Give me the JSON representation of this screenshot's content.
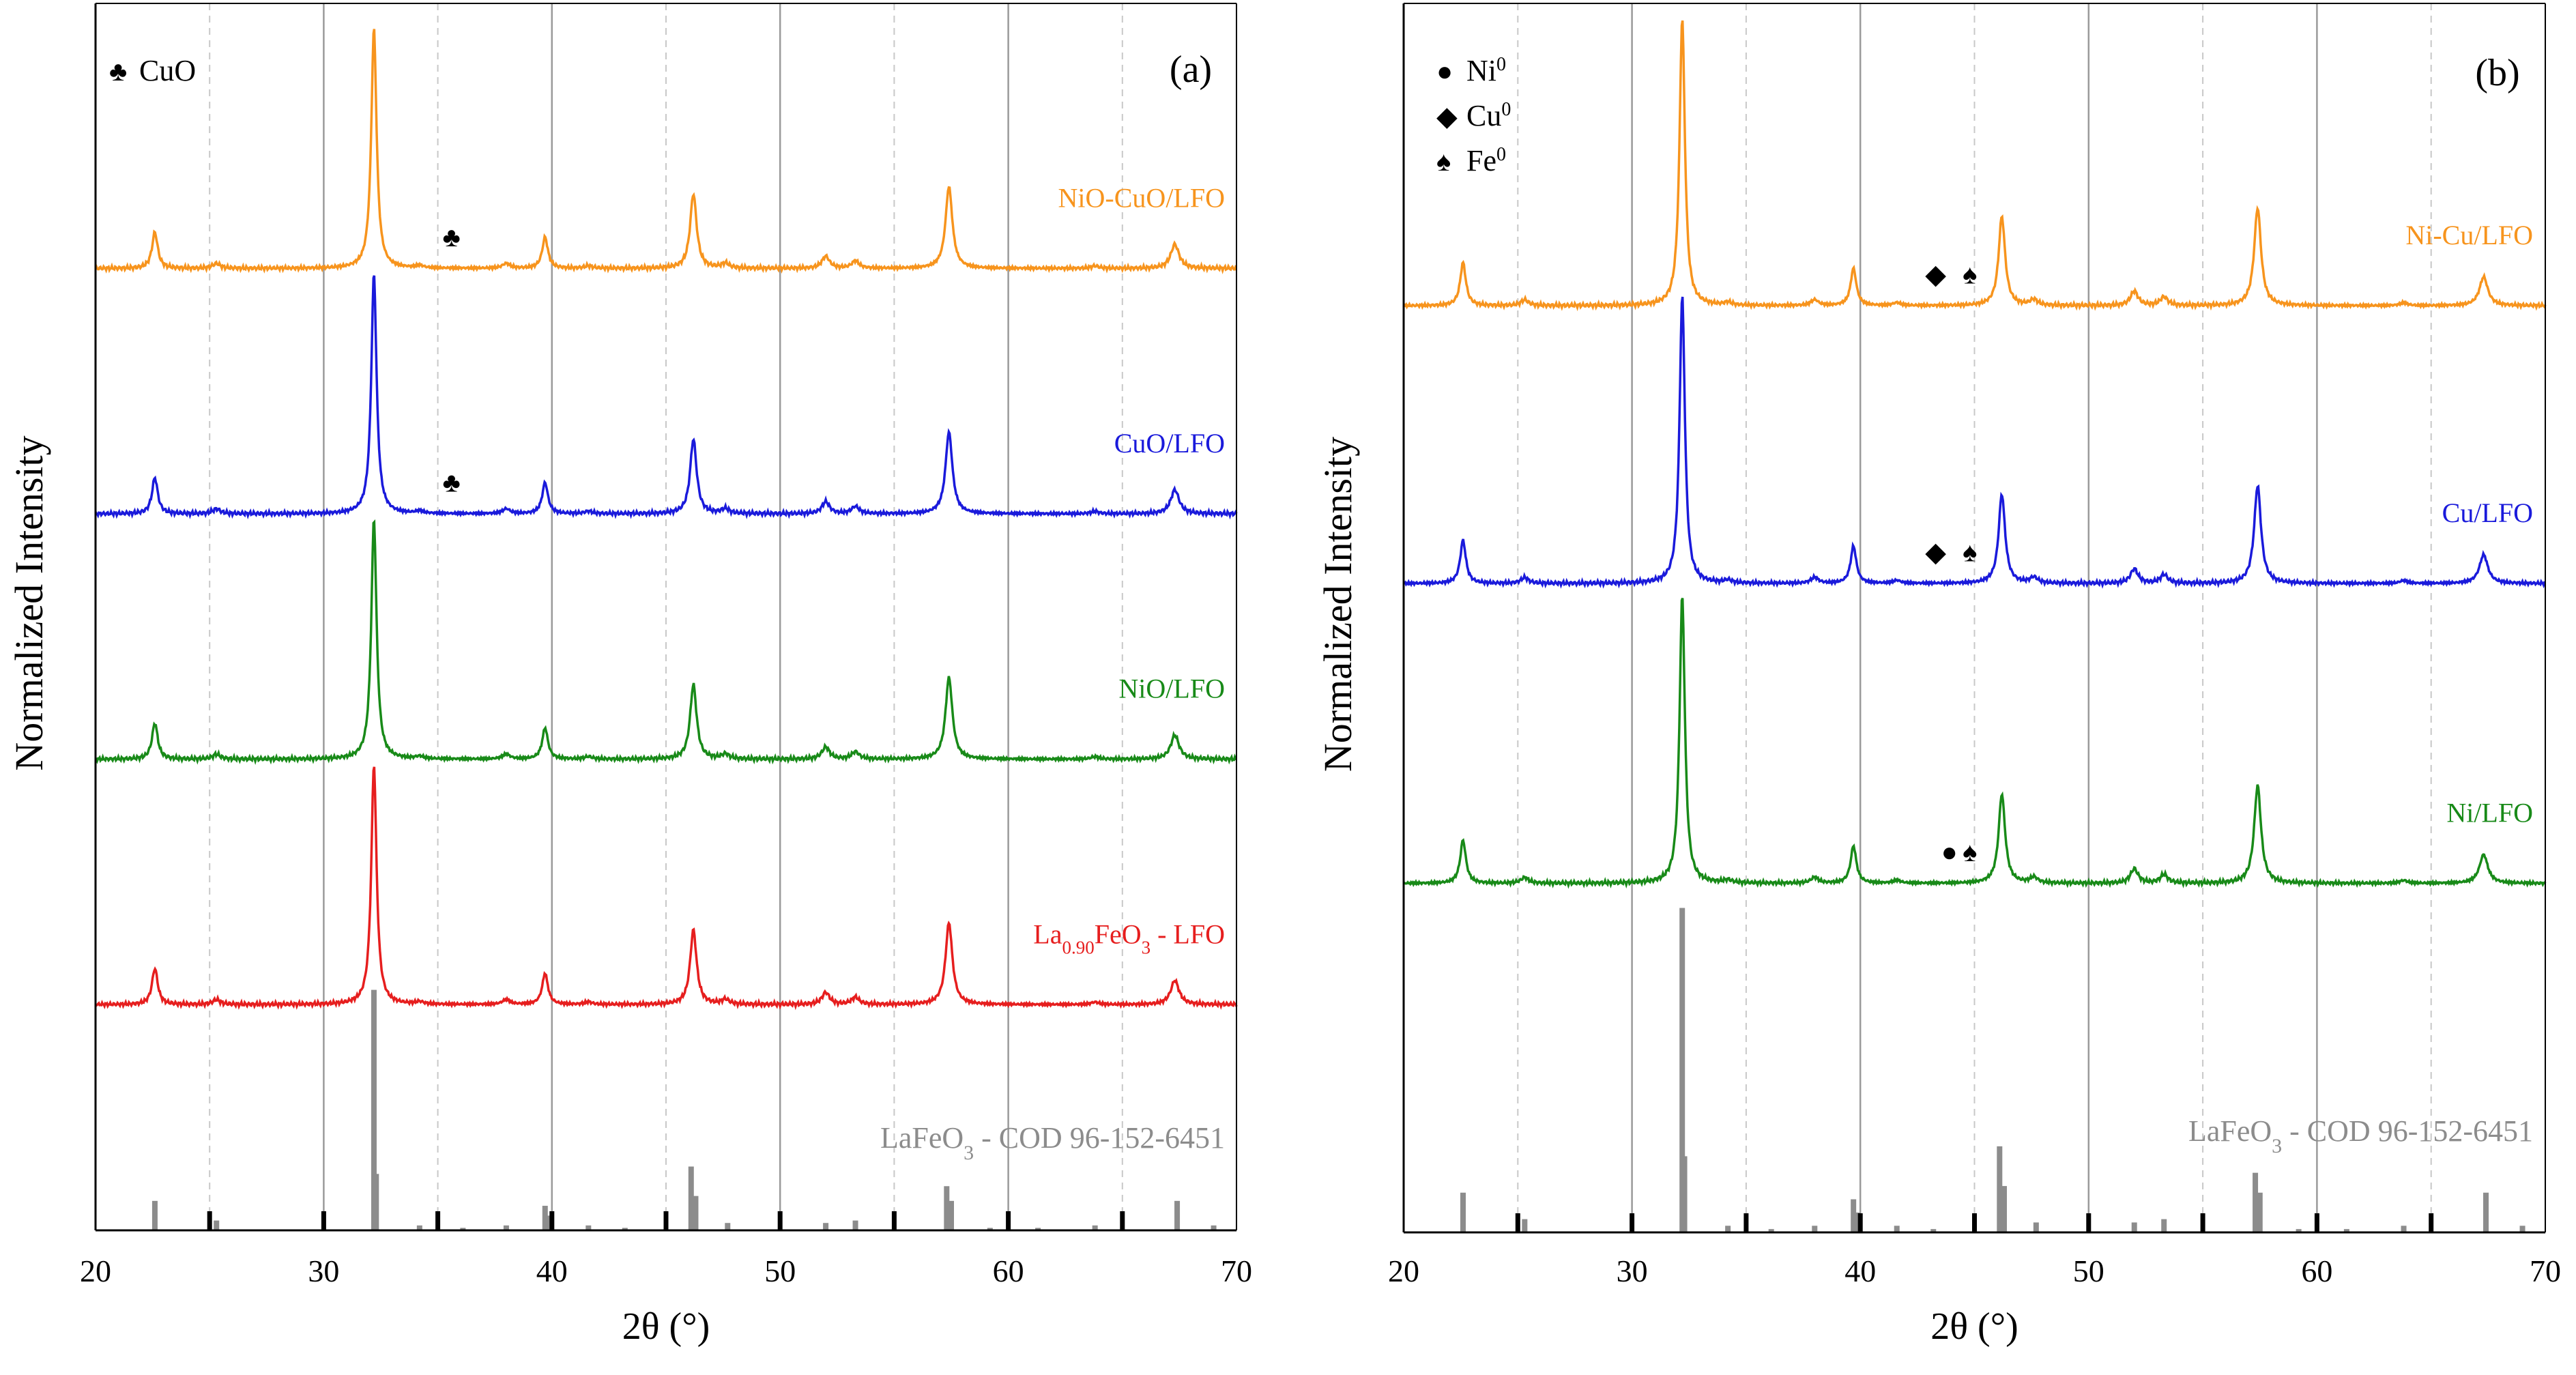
{
  "figure": {
    "panels": [
      {
        "id": "a",
        "label": "(a)"
      },
      {
        "id": "b",
        "label": "(b)"
      }
    ]
  },
  "colors": {
    "orange": "#f7941d",
    "blue": "#1a1adb",
    "green": "#188a18",
    "red": "#e61e1e",
    "reference": "#8c8c8c",
    "grid_major": "#9a9a9a",
    "grid_minor": "#c8c8c8",
    "axis": "#000000"
  },
  "chart_data": [
    {
      "type": "line",
      "panel": "(a)",
      "xlabel": "2θ (°)",
      "ylabel": "Normalized Intensity",
      "xlim": [
        20,
        70
      ],
      "ylim": [
        0,
        5
      ],
      "x_ticks": [
        20,
        30,
        40,
        50,
        60,
        70
      ],
      "x_tick_labels": [
        "20",
        "30",
        "40",
        "50",
        "60",
        "70"
      ],
      "grid": "major solid vertical lines every 10, dashed minor lines every 5",
      "legend": {
        "position": "top-left",
        "entries": [
          {
            "symbol": "♣",
            "label": "CuO"
          }
        ]
      },
      "series": [
        {
          "name": "NiO-CuO/LFO",
          "color_key": "orange",
          "baseline": 3.92,
          "peak_height": 0.98,
          "scale": 1.0,
          "markers": [
            {
              "symbol": "♣",
              "x": 35.6
            }
          ]
        },
        {
          "name": "CuO/LFO",
          "color_key": "blue",
          "baseline": 2.92,
          "peak_height": 0.98,
          "scale": 1.0,
          "markers": [
            {
              "symbol": "♣",
              "x": 35.6
            }
          ]
        },
        {
          "name": "NiO/LFO",
          "color_key": "green",
          "baseline": 1.92,
          "peak_height": 0.98,
          "scale": 1.0,
          "markers": []
        },
        {
          "name": "La0.90FeO3 - LFO",
          "label_parts": {
            "main": "La",
            "sub1": "0.90",
            "mid": "FeO",
            "sub2": "3",
            "tail": " - LFO"
          },
          "color_key": "red",
          "baseline": 0.92,
          "peak_height": 0.98,
          "scale": 1.0,
          "markers": []
        }
      ],
      "reference": {
        "name": "LaFeO3 - COD 96-152-6451",
        "label_parts": {
          "main": "LaFeO",
          "sub": "3",
          "tail": " - COD 96-152-6451"
        },
        "type": "stick",
        "max_height": 0.98,
        "peaks": [
          {
            "x": 22.6,
            "h": 0.12
          },
          {
            "x": 25.3,
            "h": 0.04
          },
          {
            "x": 32.2,
            "h": 0.98
          },
          {
            "x": 32.3,
            "h": 0.23
          },
          {
            "x": 34.2,
            "h": 0.02
          },
          {
            "x": 36.1,
            "h": 0.01
          },
          {
            "x": 38.0,
            "h": 0.02
          },
          {
            "x": 39.7,
            "h": 0.1
          },
          {
            "x": 39.9,
            "h": 0.06
          },
          {
            "x": 41.6,
            "h": 0.02
          },
          {
            "x": 43.2,
            "h": 0.01
          },
          {
            "x": 46.1,
            "h": 0.26
          },
          {
            "x": 46.3,
            "h": 0.14
          },
          {
            "x": 47.7,
            "h": 0.03
          },
          {
            "x": 52.0,
            "h": 0.03
          },
          {
            "x": 53.3,
            "h": 0.04
          },
          {
            "x": 57.3,
            "h": 0.18
          },
          {
            "x": 57.5,
            "h": 0.12
          },
          {
            "x": 59.2,
            "h": 0.01
          },
          {
            "x": 61.3,
            "h": 0.01
          },
          {
            "x": 63.8,
            "h": 0.02
          },
          {
            "x": 67.4,
            "h": 0.12
          },
          {
            "x": 69.0,
            "h": 0.02
          }
        ]
      },
      "sample_peaks": [
        {
          "x": 22.6,
          "h": 0.15,
          "w": 0.15
        },
        {
          "x": 25.3,
          "h": 0.02,
          "w": 0.2
        },
        {
          "x": 32.2,
          "h": 1.0,
          "w": 0.14
        },
        {
          "x": 34.2,
          "h": 0.01,
          "w": 0.2
        },
        {
          "x": 38.0,
          "h": 0.02,
          "w": 0.2
        },
        {
          "x": 39.7,
          "h": 0.13,
          "w": 0.15
        },
        {
          "x": 41.6,
          "h": 0.01,
          "w": 0.2
        },
        {
          "x": 46.2,
          "h": 0.31,
          "w": 0.17
        },
        {
          "x": 47.6,
          "h": 0.02,
          "w": 0.2
        },
        {
          "x": 52.0,
          "h": 0.05,
          "w": 0.2
        },
        {
          "x": 53.3,
          "h": 0.03,
          "w": 0.2
        },
        {
          "x": 57.4,
          "h": 0.34,
          "w": 0.18
        },
        {
          "x": 63.8,
          "h": 0.01,
          "w": 0.2
        },
        {
          "x": 67.3,
          "h": 0.1,
          "w": 0.22
        }
      ]
    },
    {
      "type": "line",
      "panel": "(b)",
      "xlabel": "2θ (°)",
      "ylabel": "Normalized Intensity",
      "xlim": [
        20,
        70
      ],
      "ylim": [
        0,
        5
      ],
      "x_ticks": [
        20,
        30,
        40,
        50,
        60,
        70
      ],
      "x_tick_labels": [
        "20",
        "30",
        "40",
        "50",
        "60",
        "70"
      ],
      "grid": "major solid vertical lines every 10, dashed minor lines every 5",
      "legend": {
        "position": "top-left",
        "entries": [
          {
            "symbol": "●",
            "label": "Ni",
            "sup": "0"
          },
          {
            "symbol": "◆",
            "label": "Cu",
            "sup": "0"
          },
          {
            "symbol": "♠",
            "label": "Fe",
            "sup": "0"
          }
        ]
      },
      "series": [
        {
          "name": "Ni-Cu/LFO",
          "color_key": "orange",
          "baseline": 3.77,
          "peak_height": 1.17,
          "scale": 1.19,
          "markers": [
            {
              "symbol": "◆",
              "x": 43.3
            },
            {
              "symbol": "♠",
              "x": 44.8
            }
          ]
        },
        {
          "name": "Cu/LFO",
          "color_key": "blue",
          "baseline": 2.64,
          "peak_height": 1.17,
          "scale": 1.19,
          "markers": [
            {
              "symbol": "◆",
              "x": 43.3
            },
            {
              "symbol": "♠",
              "x": 44.8
            }
          ]
        },
        {
          "name": "Ni/LFO",
          "color_key": "green",
          "baseline": 1.42,
          "peak_height": 1.17,
          "scale": 1.19,
          "markers": [
            {
              "symbol": "●",
              "x": 43.9
            },
            {
              "symbol": "♠",
              "x": 44.8
            }
          ]
        }
      ],
      "reference": {
        "name": "LaFeO3 - COD 96-152-6451",
        "label_parts": {
          "main": "LaFeO",
          "sub": "3",
          "tail": " - COD 96-152-6451"
        },
        "type": "stick",
        "max_height": 1.32,
        "peaks": [
          {
            "x": 22.6,
            "h": 0.12
          },
          {
            "x": 25.3,
            "h": 0.04
          },
          {
            "x": 32.2,
            "h": 0.98
          },
          {
            "x": 32.3,
            "h": 0.23
          },
          {
            "x": 34.2,
            "h": 0.02
          },
          {
            "x": 36.1,
            "h": 0.01
          },
          {
            "x": 38.0,
            "h": 0.02
          },
          {
            "x": 39.7,
            "h": 0.1
          },
          {
            "x": 39.9,
            "h": 0.06
          },
          {
            "x": 41.6,
            "h": 0.02
          },
          {
            "x": 43.2,
            "h": 0.01
          },
          {
            "x": 46.1,
            "h": 0.26
          },
          {
            "x": 46.3,
            "h": 0.14
          },
          {
            "x": 47.7,
            "h": 0.03
          },
          {
            "x": 52.0,
            "h": 0.03
          },
          {
            "x": 53.3,
            "h": 0.04
          },
          {
            "x": 57.3,
            "h": 0.18
          },
          {
            "x": 57.5,
            "h": 0.12
          },
          {
            "x": 59.2,
            "h": 0.01
          },
          {
            "x": 61.3,
            "h": 0.01
          },
          {
            "x": 63.8,
            "h": 0.02
          },
          {
            "x": 67.4,
            "h": 0.12
          },
          {
            "x": 69.0,
            "h": 0.02
          }
        ]
      },
      "sample_peaks": [
        {
          "x": 22.6,
          "h": 0.15,
          "w": 0.15
        },
        {
          "x": 25.3,
          "h": 0.02,
          "w": 0.2
        },
        {
          "x": 32.2,
          "h": 1.0,
          "w": 0.14
        },
        {
          "x": 34.2,
          "h": 0.01,
          "w": 0.2
        },
        {
          "x": 38.0,
          "h": 0.02,
          "w": 0.2
        },
        {
          "x": 39.7,
          "h": 0.13,
          "w": 0.15
        },
        {
          "x": 41.6,
          "h": 0.01,
          "w": 0.2
        },
        {
          "x": 46.2,
          "h": 0.31,
          "w": 0.17
        },
        {
          "x": 47.6,
          "h": 0.02,
          "w": 0.2
        },
        {
          "x": 52.0,
          "h": 0.05,
          "w": 0.2
        },
        {
          "x": 53.3,
          "h": 0.03,
          "w": 0.2
        },
        {
          "x": 57.4,
          "h": 0.34,
          "w": 0.18
        },
        {
          "x": 63.8,
          "h": 0.01,
          "w": 0.2
        },
        {
          "x": 67.3,
          "h": 0.1,
          "w": 0.22
        }
      ]
    }
  ]
}
